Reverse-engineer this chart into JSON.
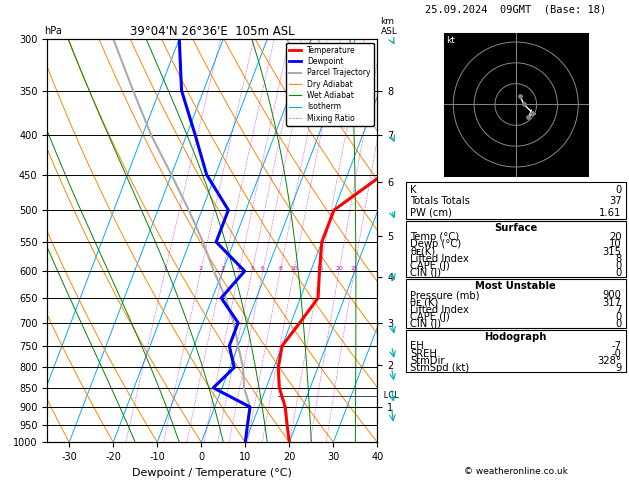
{
  "title_left": "39°04'N 26°36'E  105m ASL",
  "title_right": "25.09.2024  09GMT  (Base: 18)",
  "xlabel": "Dewpoint / Temperature (°C)",
  "pressure_levels": [
    300,
    350,
    400,
    450,
    500,
    550,
    600,
    650,
    700,
    750,
    800,
    850,
    900,
    950,
    1000
  ],
  "temp_x": [
    20,
    18,
    16,
    13,
    11,
    10,
    12,
    14,
    12,
    10,
    10,
    18,
    20,
    20,
    20
  ],
  "temp_p": [
    1000,
    950,
    900,
    850,
    800,
    750,
    700,
    650,
    600,
    550,
    500,
    450,
    400,
    350,
    300
  ],
  "dewp_x": [
    10,
    9,
    8,
    -2,
    1,
    -2,
    -2,
    -8,
    -5,
    -14,
    -14,
    -22,
    -28,
    -35,
    -40
  ],
  "dewp_p": [
    1000,
    950,
    900,
    850,
    800,
    750,
    700,
    650,
    600,
    550,
    500,
    450,
    400,
    350,
    300
  ],
  "parcel_x": [
    10,
    9,
    8,
    5,
    3,
    0,
    -3,
    -7,
    -12,
    -17,
    -23,
    -30,
    -38,
    -46,
    -55
  ],
  "parcel_p": [
    1000,
    950,
    900,
    850,
    800,
    750,
    700,
    650,
    600,
    550,
    500,
    450,
    400,
    350,
    300
  ],
  "skew_deg": 45,
  "p_min": 300,
  "p_max": 1000,
  "t_min": -35,
  "t_max": 40,
  "isotherm_temps": [
    -40,
    -30,
    -20,
    -10,
    0,
    10,
    20,
    30,
    40,
    50
  ],
  "dry_adiabat_thetas": [
    -30,
    -20,
    -10,
    0,
    10,
    20,
    30,
    40,
    50,
    60,
    70,
    80,
    90,
    100
  ],
  "wet_adiabat_T0s": [
    -15,
    -5,
    5,
    15,
    25,
    35
  ],
  "mixing_ratios": [
    1,
    2,
    3,
    4,
    5,
    6,
    8,
    10,
    15,
    20,
    25
  ],
  "km_ticks": [
    1,
    2,
    3,
    4,
    5,
    6,
    7,
    8
  ],
  "km_pressures": [
    900,
    795,
    700,
    610,
    540,
    460,
    400,
    350
  ],
  "lcl_pressure": 870,
  "bg_color": "#ffffff",
  "sounding_color": "#ff0000",
  "dewpoint_color": "#0000ff",
  "parcel_color": "#aaaaaa",
  "dry_adiabat_color": "#ff8800",
  "wet_adiabat_color": "#008800",
  "isotherm_color": "#00aaff",
  "mixing_ratio_color": "#cc00cc",
  "hodo_bg": "#000000",
  "hodo_line_color": "#888888",
  "info_panel": {
    "K": "0",
    "Totals Totals": "37",
    "PW (cm)": "1.61",
    "Surface_Temp": "20",
    "Surface_Dewp": "10",
    "Surface_theta_e": "315",
    "Surface_LI": "8",
    "Surface_CAPE": "0",
    "Surface_CIN": "0",
    "MU_Pressure": "900",
    "MU_theta_e": "317",
    "MU_LI": "7",
    "MU_CAPE": "0",
    "MU_CIN": "0",
    "EH": "-7",
    "SREH": "-0",
    "StmDir": "328°",
    "StmSpd": "9"
  },
  "copyright": "© weatheronline.co.uk",
  "wind_p": [
    1000,
    950,
    900,
    850,
    800,
    750,
    700,
    600,
    500,
    400,
    300
  ],
  "wind_speed": [
    5,
    6,
    7,
    8,
    8,
    7,
    8,
    9,
    10,
    12,
    14
  ],
  "wind_dir": [
    340,
    340,
    335,
    330,
    325,
    320,
    315,
    310,
    305,
    300,
    295
  ]
}
